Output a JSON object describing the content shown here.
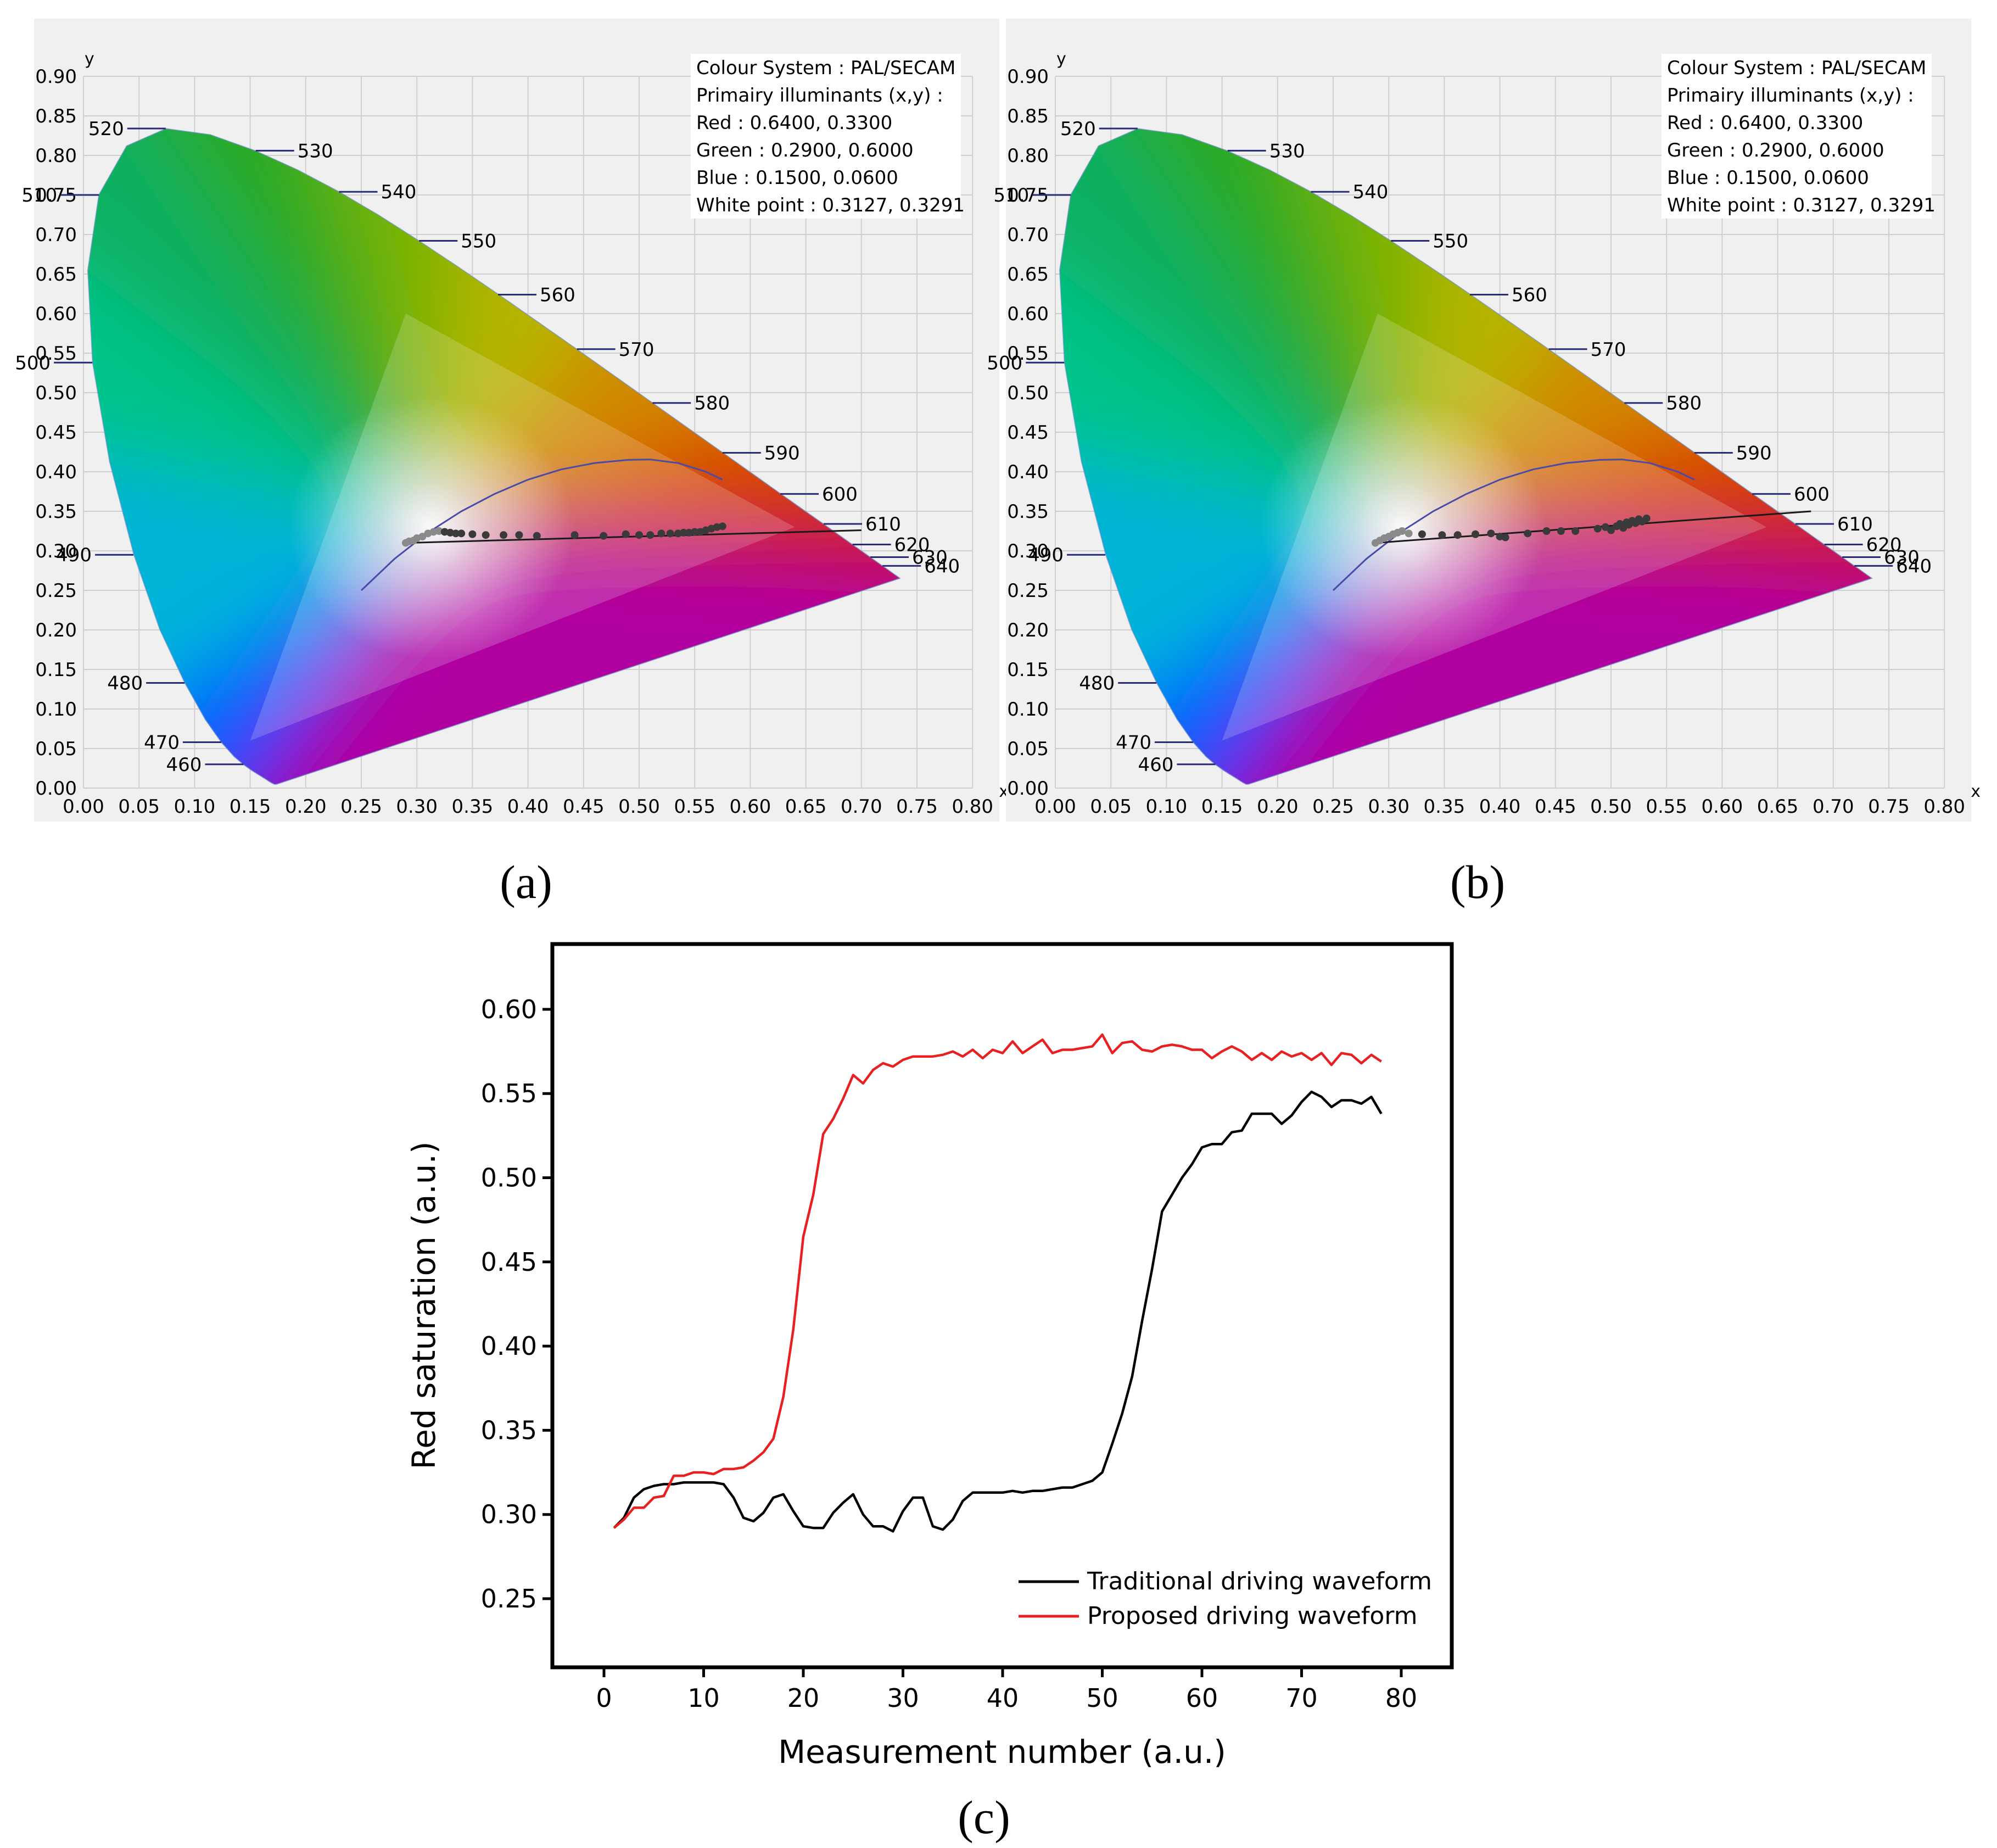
{
  "panel_labels": {
    "a": "(a)",
    "b": "(b)",
    "c": "(c)"
  },
  "chart_data": [
    {
      "id": "a",
      "type": "scatter",
      "title": "",
      "xlabel": "x",
      "ylabel": "y",
      "xlim": [
        0,
        0.8
      ],
      "ylim": [
        0,
        0.9
      ],
      "grid": true,
      "xticks": [
        0.0,
        0.05,
        0.1,
        0.15,
        0.2,
        0.25,
        0.3,
        0.35,
        0.4,
        0.45,
        0.5,
        0.55,
        0.6,
        0.65,
        0.7,
        0.75,
        0.8
      ],
      "yticks": [
        0.0,
        0.05,
        0.1,
        0.15,
        0.2,
        0.25,
        0.3,
        0.35,
        0.4,
        0.45,
        0.5,
        0.55,
        0.6,
        0.65,
        0.7,
        0.75,
        0.8,
        0.85,
        0.9
      ],
      "info": [
        "Colour System : PAL/SECAM",
        "Primairy illuminants (x,y) :",
        "Red : 0.6400, 0.3300",
        "Green : 0.2900, 0.6000",
        "Blue : 0.1500, 0.0600",
        "White point  : 0.3127, 0.3291"
      ],
      "primaries": {
        "red": [
          0.64,
          0.33
        ],
        "green": [
          0.29,
          0.6
        ],
        "blue": [
          0.15,
          0.06
        ]
      },
      "wavelength_labels": [
        {
          "nm": "460",
          "x": 0.144,
          "y": 0.03
        },
        {
          "nm": "470",
          "x": 0.124,
          "y": 0.058
        },
        {
          "nm": "480",
          "x": 0.091,
          "y": 0.133
        },
        {
          "nm": "490",
          "x": 0.045,
          "y": 0.295
        },
        {
          "nm": "500",
          "x": 0.008,
          "y": 0.538
        },
        {
          "nm": "510",
          "x": 0.014,
          "y": 0.75
        },
        {
          "nm": "520",
          "x": 0.074,
          "y": 0.834
        },
        {
          "nm": "530",
          "x": 0.155,
          "y": 0.806
        },
        {
          "nm": "540",
          "x": 0.23,
          "y": 0.754
        },
        {
          "nm": "550",
          "x": 0.302,
          "y": 0.692
        },
        {
          "nm": "560",
          "x": 0.373,
          "y": 0.624
        },
        {
          "nm": "570",
          "x": 0.444,
          "y": 0.555
        },
        {
          "nm": "580",
          "x": 0.512,
          "y": 0.487
        },
        {
          "nm": "590",
          "x": 0.575,
          "y": 0.424
        },
        {
          "nm": "600",
          "x": 0.627,
          "y": 0.372
        },
        {
          "nm": "610",
          "x": 0.666,
          "y": 0.334
        },
        {
          "nm": "620",
          "x": 0.692,
          "y": 0.308
        },
        {
          "nm": "630",
          "x": 0.708,
          "y": 0.292
        },
        {
          "nm": "640",
          "x": 0.719,
          "y": 0.281
        }
      ],
      "points": [
        [
          0.29,
          0.31
        ],
        [
          0.293,
          0.312
        ],
        [
          0.297,
          0.313
        ],
        [
          0.3,
          0.316
        ],
        [
          0.305,
          0.318
        ],
        [
          0.31,
          0.322
        ],
        [
          0.315,
          0.324
        ],
        [
          0.32,
          0.325
        ],
        [
          0.325,
          0.324
        ],
        [
          0.33,
          0.323
        ],
        [
          0.335,
          0.322
        ],
        [
          0.34,
          0.322
        ],
        [
          0.35,
          0.321
        ],
        [
          0.362,
          0.32
        ],
        [
          0.378,
          0.32
        ],
        [
          0.392,
          0.32
        ],
        [
          0.408,
          0.319
        ],
        [
          0.442,
          0.32
        ],
        [
          0.468,
          0.319
        ],
        [
          0.488,
          0.321
        ],
        [
          0.5,
          0.32
        ],
        [
          0.51,
          0.32
        ],
        [
          0.52,
          0.322
        ],
        [
          0.528,
          0.322
        ],
        [
          0.535,
          0.322
        ],
        [
          0.54,
          0.323
        ],
        [
          0.545,
          0.323
        ],
        [
          0.55,
          0.324
        ],
        [
          0.555,
          0.324
        ],
        [
          0.56,
          0.326
        ],
        [
          0.565,
          0.328
        ],
        [
          0.57,
          0.33
        ],
        [
          0.575,
          0.331
        ]
      ]
    },
    {
      "id": "b",
      "type": "scatter",
      "title": "",
      "xlabel": "x",
      "ylabel": "y",
      "xlim": [
        0,
        0.8
      ],
      "ylim": [
        0,
        0.9
      ],
      "grid": true,
      "xticks": [
        0.0,
        0.05,
        0.1,
        0.15,
        0.2,
        0.25,
        0.3,
        0.35,
        0.4,
        0.45,
        0.5,
        0.55,
        0.6,
        0.65,
        0.7,
        0.75,
        0.8
      ],
      "yticks": [
        0.0,
        0.05,
        0.1,
        0.15,
        0.2,
        0.25,
        0.3,
        0.35,
        0.4,
        0.45,
        0.5,
        0.55,
        0.6,
        0.65,
        0.7,
        0.75,
        0.8,
        0.85,
        0.9
      ],
      "info": [
        "Colour System : PAL/SECAM",
        "Primairy illuminants (x,y) :",
        "Red : 0.6400, 0.3300",
        "Green : 0.2900, 0.6000",
        "Blue : 0.1500, 0.0600",
        "White point  : 0.3127, 0.3291"
      ],
      "primaries": {
        "red": [
          0.64,
          0.33
        ],
        "green": [
          0.29,
          0.6
        ],
        "blue": [
          0.15,
          0.06
        ]
      },
      "wavelength_labels": [
        {
          "nm": "460",
          "x": 0.144,
          "y": 0.03
        },
        {
          "nm": "470",
          "x": 0.124,
          "y": 0.058
        },
        {
          "nm": "480",
          "x": 0.091,
          "y": 0.133
        },
        {
          "nm": "490",
          "x": 0.045,
          "y": 0.295
        },
        {
          "nm": "500",
          "x": 0.008,
          "y": 0.538
        },
        {
          "nm": "510",
          "x": 0.014,
          "y": 0.75
        },
        {
          "nm": "520",
          "x": 0.074,
          "y": 0.834
        },
        {
          "nm": "530",
          "x": 0.155,
          "y": 0.806
        },
        {
          "nm": "540",
          "x": 0.23,
          "y": 0.754
        },
        {
          "nm": "550",
          "x": 0.302,
          "y": 0.692
        },
        {
          "nm": "560",
          "x": 0.373,
          "y": 0.624
        },
        {
          "nm": "570",
          "x": 0.444,
          "y": 0.555
        },
        {
          "nm": "580",
          "x": 0.512,
          "y": 0.487
        },
        {
          "nm": "590",
          "x": 0.575,
          "y": 0.424
        },
        {
          "nm": "600",
          "x": 0.627,
          "y": 0.372
        },
        {
          "nm": "610",
          "x": 0.666,
          "y": 0.334
        },
        {
          "nm": "620",
          "x": 0.692,
          "y": 0.308
        },
        {
          "nm": "630",
          "x": 0.708,
          "y": 0.292
        },
        {
          "nm": "640",
          "x": 0.719,
          "y": 0.281
        }
      ],
      "points": [
        [
          0.288,
          0.31
        ],
        [
          0.292,
          0.313
        ],
        [
          0.296,
          0.316
        ],
        [
          0.3,
          0.318
        ],
        [
          0.304,
          0.321
        ],
        [
          0.308,
          0.323
        ],
        [
          0.312,
          0.325
        ],
        [
          0.318,
          0.322
        ],
        [
          0.33,
          0.321
        ],
        [
          0.348,
          0.32
        ],
        [
          0.362,
          0.32
        ],
        [
          0.378,
          0.321
        ],
        [
          0.392,
          0.322
        ],
        [
          0.4,
          0.318
        ],
        [
          0.405,
          0.317
        ],
        [
          0.425,
          0.322
        ],
        [
          0.442,
          0.325
        ],
        [
          0.455,
          0.325
        ],
        [
          0.468,
          0.325
        ],
        [
          0.488,
          0.328
        ],
        [
          0.495,
          0.33
        ],
        [
          0.5,
          0.326
        ],
        [
          0.505,
          0.331
        ],
        [
          0.508,
          0.334
        ],
        [
          0.511,
          0.329
        ],
        [
          0.514,
          0.336
        ],
        [
          0.516,
          0.333
        ],
        [
          0.519,
          0.338
        ],
        [
          0.522,
          0.335
        ],
        [
          0.525,
          0.34
        ],
        [
          0.528,
          0.337
        ],
        [
          0.532,
          0.341
        ]
      ]
    },
    {
      "id": "c",
      "type": "line",
      "title": "",
      "xlabel": "Measurement number (a.u.)",
      "ylabel": "Red saturation (a.u.)",
      "xlim": [
        -5,
        85
      ],
      "ylim": [
        0.21,
        0.645
      ],
      "xticks": [
        0,
        10,
        20,
        30,
        40,
        50,
        60,
        70,
        80
      ],
      "yticks": [
        "0.25",
        "0.30",
        "0.35",
        "0.40",
        "0.45",
        "0.50",
        "0.55",
        "0.60"
      ],
      "legend": "bottom-right",
      "x_start": 1,
      "series": [
        {
          "name": "Traditional driving waveform",
          "color": "#000000",
          "values": [
            0.292,
            0.298,
            0.31,
            0.315,
            0.317,
            0.318,
            0.318,
            0.319,
            0.319,
            0.319,
            0.319,
            0.318,
            0.31,
            0.298,
            0.296,
            0.301,
            0.31,
            0.312,
            0.302,
            0.293,
            0.292,
            0.292,
            0.301,
            0.307,
            0.312,
            0.3,
            0.293,
            0.293,
            0.29,
            0.302,
            0.31,
            0.31,
            0.293,
            0.291,
            0.297,
            0.308,
            0.313,
            0.313,
            0.313,
            0.313,
            0.314,
            0.313,
            0.314,
            0.314,
            0.315,
            0.316,
            0.316,
            0.318,
            0.32,
            0.325,
            0.342,
            0.36,
            0.382,
            0.415,
            0.446,
            0.48,
            0.49,
            0.5,
            0.508,
            0.518,
            0.52,
            0.52,
            0.527,
            0.528,
            0.538,
            0.538,
            0.538,
            0.532,
            0.537,
            0.545,
            0.551,
            0.548,
            0.542,
            0.546,
            0.546,
            0.544,
            0.548,
            0.538
          ]
        },
        {
          "name": "Proposed driving waveform",
          "color": "#e82020",
          "values": [
            0.292,
            0.297,
            0.304,
            0.304,
            0.31,
            0.311,
            0.323,
            0.323,
            0.325,
            0.325,
            0.324,
            0.327,
            0.327,
            0.328,
            0.332,
            0.337,
            0.345,
            0.37,
            0.41,
            0.465,
            0.49,
            0.526,
            0.535,
            0.547,
            0.561,
            0.556,
            0.564,
            0.568,
            0.566,
            0.57,
            0.572,
            0.572,
            0.572,
            0.573,
            0.575,
            0.572,
            0.576,
            0.571,
            0.576,
            0.574,
            0.581,
            0.574,
            0.578,
            0.582,
            0.574,
            0.576,
            0.576,
            0.577,
            0.578,
            0.585,
            0.574,
            0.58,
            0.581,
            0.576,
            0.575,
            0.578,
            0.579,
            0.578,
            0.576,
            0.576,
            0.571,
            0.575,
            0.578,
            0.575,
            0.57,
            0.574,
            0.57,
            0.575,
            0.572,
            0.574,
            0.57,
            0.574,
            0.567,
            0.574,
            0.573,
            0.568,
            0.573,
            0.569
          ]
        }
      ]
    }
  ]
}
